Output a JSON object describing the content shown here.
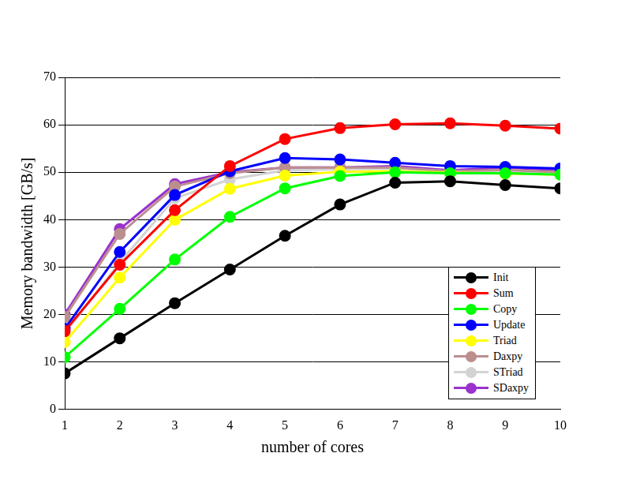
{
  "chart_data": {
    "type": "line",
    "x_label": "number of cores",
    "y_label": "Memory bandwidth [GB/s]",
    "x": [
      1,
      2,
      3,
      4,
      5,
      6,
      7,
      8,
      9,
      10
    ],
    "xlim": [
      1,
      10
    ],
    "xticks": [
      1,
      2,
      3,
      4,
      5,
      6,
      7,
      8,
      9,
      10
    ],
    "ylim": [
      0,
      70
    ],
    "yticks": [
      0,
      10,
      20,
      30,
      40,
      50,
      60,
      70
    ],
    "grid": true,
    "legend": "lower right",
    "marker": "circle",
    "line_style": "solid",
    "series": [
      {
        "name": "Init",
        "color": "#000000",
        "values": [
          7.6,
          15,
          22.4,
          29.5,
          36.6,
          43.2,
          47.8,
          48.1,
          47.3,
          46.6
        ]
      },
      {
        "name": "Sum",
        "color": "#ff0000",
        "values": [
          16.5,
          30.5,
          42,
          51.3,
          57,
          59.3,
          60.1,
          60.3,
          59.8,
          59.2
        ]
      },
      {
        "name": "Copy",
        "color": "#00ff00",
        "values": [
          11,
          21.2,
          31.6,
          40.6,
          46.6,
          49.2,
          50,
          49.8,
          49.8,
          49.5
        ]
      },
      {
        "name": "Update",
        "color": "#0000ff",
        "values": [
          17,
          33.2,
          45.2,
          50.2,
          53,
          52.7,
          52,
          51.3,
          51.1,
          50.8
        ]
      },
      {
        "name": "Triad",
        "color": "#ffff00",
        "values": [
          14.2,
          27.8,
          40,
          46.5,
          49.3,
          50.1,
          50.2,
          49.9,
          49.7,
          49.5
        ]
      },
      {
        "name": "Daxpy",
        "color": "#bc8f8f",
        "values": [
          19.5,
          37,
          47,
          49.8,
          51,
          51,
          51,
          50.2,
          50.5,
          50
        ]
      },
      {
        "name": "STriad",
        "color": "#d3d3d3",
        "values": [
          16,
          31,
          44.5,
          48.5,
          50.4,
          50.6,
          50.8,
          50.2,
          50.2,
          50
        ]
      },
      {
        "name": "SDaxpy",
        "color": "#9a32cd",
        "values": [
          20,
          38,
          47.5,
          50,
          51,
          51,
          51.3,
          50.4,
          51,
          50.4
        ]
      }
    ]
  }
}
